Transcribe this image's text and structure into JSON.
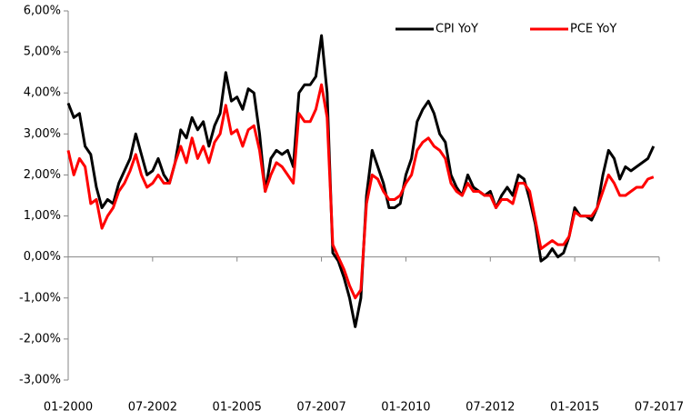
{
  "chart_data": {
    "type": "line",
    "categories": [
      "01-2000",
      null,
      null,
      null,
      null,
      null,
      null,
      null,
      null,
      null,
      null,
      null,
      null,
      null,
      null,
      "07-2002",
      null,
      null,
      null,
      null,
      null,
      null,
      null,
      null,
      null,
      null,
      null,
      null,
      null,
      null,
      "01-2005",
      null,
      null,
      null,
      null,
      null,
      null,
      null,
      null,
      null,
      null,
      null,
      null,
      null,
      null,
      "07-2007",
      null,
      null,
      null,
      null,
      null,
      null,
      null,
      null,
      null,
      null,
      null,
      null,
      null,
      null,
      "01-2010",
      null,
      null,
      null,
      null,
      null,
      null,
      null,
      null,
      null,
      null,
      null,
      null,
      null,
      null,
      "07-2012",
      null,
      null,
      null,
      null,
      null,
      null,
      null,
      null,
      null,
      null,
      null,
      null,
      null,
      null,
      "01-2015",
      null,
      null,
      null,
      null,
      null,
      null,
      null,
      null,
      null,
      null,
      null,
      null,
      null,
      null,
      "07-2017"
    ],
    "series": [
      {
        "name": "CPI YoY",
        "color": "#000000",
        "values": [
          3.75,
          3.4,
          3.5,
          2.7,
          2.5,
          1.7,
          1.2,
          1.4,
          1.3,
          1.8,
          2.1,
          2.4,
          3.0,
          2.5,
          2.0,
          2.1,
          2.4,
          2.0,
          1.8,
          2.3,
          3.1,
          2.9,
          3.4,
          3.1,
          3.3,
          2.7,
          3.2,
          3.5,
          4.5,
          3.8,
          3.9,
          3.6,
          4.1,
          4.0,
          3.0,
          1.6,
          2.4,
          2.6,
          2.5,
          2.6,
          2.2,
          4.0,
          4.2,
          4.2,
          4.4,
          5.4,
          4.0,
          0.1,
          -0.1,
          -0.5,
          -1.0,
          -1.7,
          -1.0,
          1.5,
          2.6,
          2.2,
          1.8,
          1.2,
          1.2,
          1.3,
          2.0,
          2.4,
          3.3,
          3.6,
          3.8,
          3.5,
          3.0,
          2.8,
          2.0,
          1.7,
          1.5,
          2.0,
          1.7,
          1.6,
          1.5,
          1.6,
          1.2,
          1.5,
          1.7,
          1.5,
          2.0,
          1.9,
          1.4,
          0.8,
          -0.1,
          0.0,
          0.2,
          0.0,
          0.1,
          0.5,
          1.2,
          1.0,
          1.0,
          0.9,
          1.2,
          2.0,
          2.6,
          2.4,
          1.9,
          2.2,
          2.1,
          2.2,
          2.3,
          2.4,
          2.7,
          null
        ]
      },
      {
        "name": "PCE YoY",
        "color": "#ff0000",
        "values": [
          2.6,
          2.0,
          2.4,
          2.2,
          1.3,
          1.4,
          0.7,
          1.0,
          1.2,
          1.6,
          1.8,
          2.1,
          2.5,
          2.0,
          1.7,
          1.8,
          2.0,
          1.8,
          1.8,
          2.3,
          2.7,
          2.3,
          2.9,
          2.4,
          2.7,
          2.3,
          2.8,
          3.0,
          3.7,
          3.0,
          3.1,
          2.7,
          3.1,
          3.2,
          2.6,
          1.6,
          2.0,
          2.3,
          2.2,
          2.0,
          1.8,
          3.5,
          3.3,
          3.3,
          3.6,
          4.2,
          3.4,
          0.3,
          0.0,
          -0.3,
          -0.7,
          -1.0,
          -0.8,
          1.3,
          2.0,
          1.9,
          1.6,
          1.4,
          1.4,
          1.5,
          1.8,
          2.0,
          2.6,
          2.8,
          2.9,
          2.7,
          2.6,
          2.4,
          1.8,
          1.6,
          1.5,
          1.8,
          1.6,
          1.6,
          1.5,
          1.5,
          1.2,
          1.4,
          1.4,
          1.3,
          1.8,
          1.8,
          1.6,
          0.9,
          0.2,
          0.3,
          0.4,
          0.3,
          0.3,
          0.5,
          1.1,
          1.0,
          1.0,
          1.0,
          1.2,
          1.6,
          2.0,
          1.8,
          1.5,
          1.5,
          1.6,
          1.7,
          1.7,
          1.9,
          1.95,
          null
        ]
      }
    ],
    "ylim": [
      -3,
      6
    ],
    "yticks": [
      {
        "value": -3,
        "label": "-3,00%"
      },
      {
        "value": -2,
        "label": "-2,00%"
      },
      {
        "value": -1,
        "label": "-1,00%"
      },
      {
        "value": 0,
        "label": "0,00%"
      },
      {
        "value": 1,
        "label": "1,00%"
      },
      {
        "value": 2,
        "label": "2,00%"
      },
      {
        "value": 3,
        "label": "3,00%"
      },
      {
        "value": 4,
        "label": "4,00%"
      },
      {
        "value": 5,
        "label": "5,00%"
      },
      {
        "value": 6,
        "label": "6,00%"
      }
    ],
    "grid": false,
    "legend": "upper right"
  }
}
